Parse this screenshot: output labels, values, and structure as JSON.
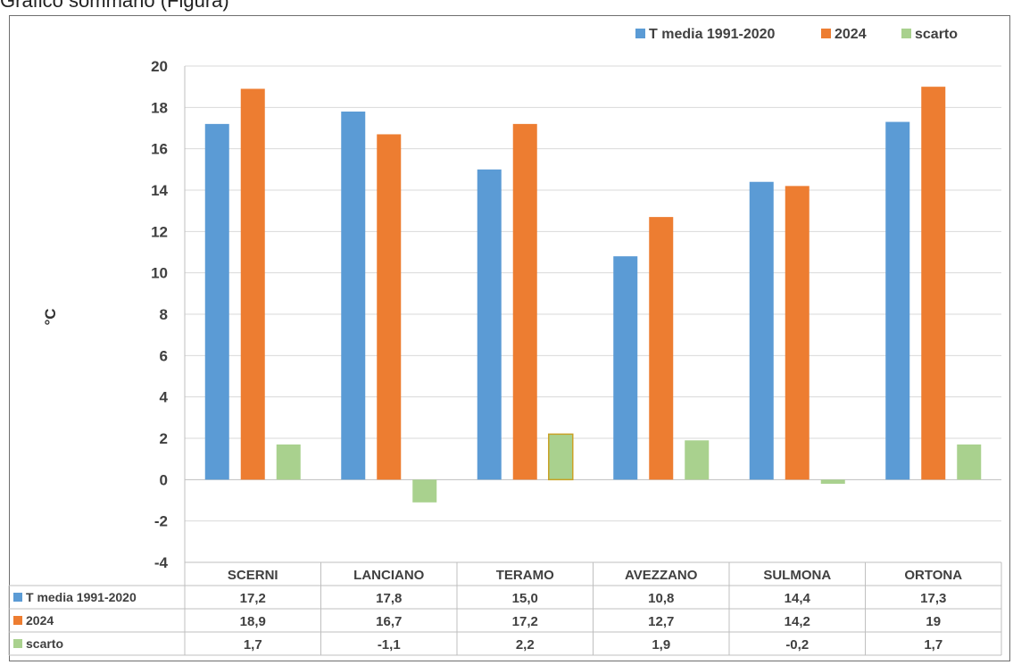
{
  "caption_top": "Grafico sommario (Figura)",
  "chart_data": {
    "type": "bar",
    "categories": [
      "SCERNI",
      "LANCIANO",
      "TERAMO",
      "AVEZZANO",
      "SULMONA",
      "ORTONA"
    ],
    "series": [
      {
        "name": "T media 1991-2020",
        "values": [
          17.2,
          17.8,
          15.0,
          10.8,
          14.4,
          17.3
        ],
        "labels": [
          "17,2",
          "17,8",
          "15,0",
          "10,8",
          "14,4",
          "17,3"
        ],
        "color": "#5b9bd5"
      },
      {
        "name": "2024",
        "values": [
          18.9,
          16.7,
          17.2,
          12.7,
          14.2,
          19
        ],
        "labels": [
          "18,9",
          "16,7",
          "17,2",
          "12,7",
          "14,2",
          "19"
        ],
        "color": "#ed7d31"
      },
      {
        "name": "scarto",
        "values": [
          1.7,
          -1.1,
          2.2,
          1.9,
          -0.2,
          1.7
        ],
        "labels": [
          "1,7",
          "-1,1",
          "2,2",
          "1,9",
          "-0,2",
          "1,7"
        ],
        "color": "#a9d18e"
      }
    ],
    "ylabel": "°C",
    "ylim": [
      -4,
      20
    ],
    "yticks": [
      -4,
      -2,
      0,
      2,
      4,
      6,
      8,
      10,
      12,
      14,
      16,
      18,
      20
    ],
    "grid": true,
    "legend_position": "top-right",
    "data_table": true
  }
}
